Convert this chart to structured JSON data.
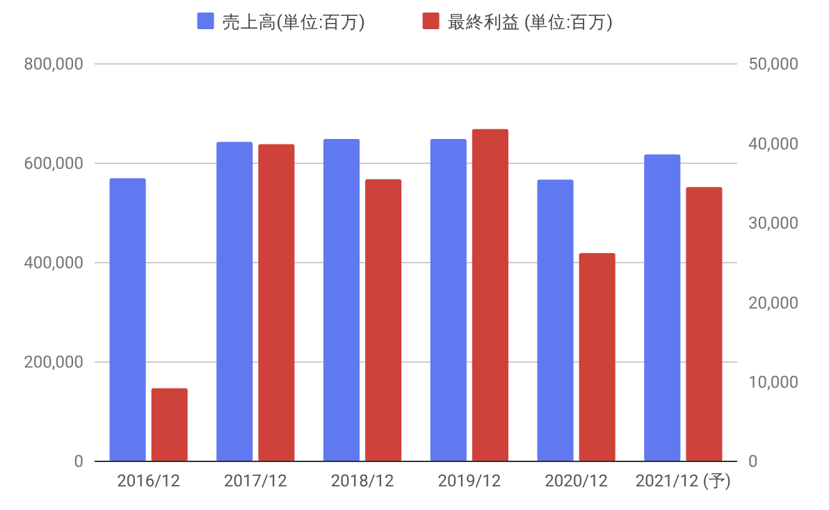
{
  "chart_data": {
    "type": "bar",
    "categories": [
      "2016/12",
      "2017/12",
      "2018/12",
      "2019/12",
      "2020/12",
      "2021/12 (予)"
    ],
    "series": [
      {
        "name": "売上高(単位:百万)",
        "color": "#6079f0",
        "values": [
          570000,
          643000,
          649000,
          649000,
          567000,
          618000
        ]
      },
      {
        "name": "最終利益 (単位:百万)",
        "color": "#cf4239",
        "axis": "y2",
        "values": [
          9200,
          39900,
          35500,
          41800,
          26200,
          34500
        ]
      }
    ],
    "ylim": [
      0,
      800000
    ],
    "yticks": [
      {
        "value": 0,
        "label": "0"
      },
      {
        "value": 200000,
        "label": "200,000"
      },
      {
        "value": 400000,
        "label": "400,000"
      },
      {
        "value": 600000,
        "label": "600,000"
      },
      {
        "value": 800000,
        "label": "800,000"
      }
    ],
    "y2lim": [
      0,
      50000
    ],
    "y2ticks": [
      {
        "value": 0,
        "label": "0"
      },
      {
        "value": 10000,
        "label": "10,000"
      },
      {
        "value": 20000,
        "label": "20,000"
      },
      {
        "value": 30000,
        "label": "30,000"
      },
      {
        "value": 40000,
        "label": "40,000"
      },
      {
        "value": 50000,
        "label": "50,000"
      }
    ],
    "grid": "y",
    "legend": "top"
  }
}
